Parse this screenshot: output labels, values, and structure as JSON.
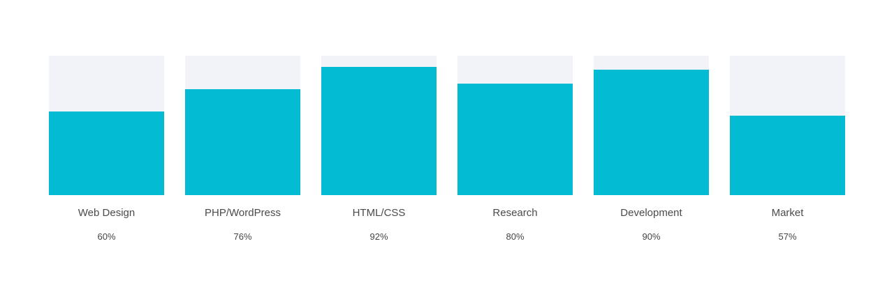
{
  "colors": {
    "bar_fill": "#03bcd4",
    "bar_track": "#f2f3f8"
  },
  "skills": [
    {
      "name": "Web Design",
      "percent_label": "60%",
      "level": 0.6
    },
    {
      "name": "PHP/WordPress",
      "percent_label": "76%",
      "level": 0.76
    },
    {
      "name": "HTML/CSS",
      "percent_label": "92%",
      "level": 0.92
    },
    {
      "name": "Research",
      "percent_label": "80%",
      "level": 0.8
    },
    {
      "name": "Development",
      "percent_label": "90%",
      "level": 0.9
    },
    {
      "name": "Market",
      "percent_label": "57%",
      "level": 0.57
    }
  ]
}
